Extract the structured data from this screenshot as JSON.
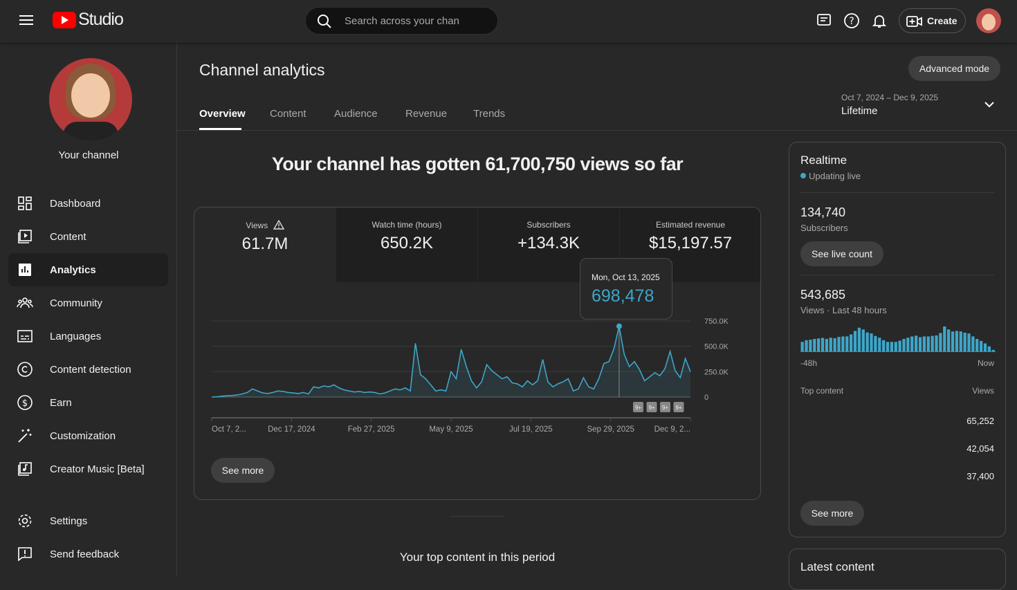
{
  "header": {
    "logo": "Studio",
    "search_placeholder": "Search across your chan",
    "create": "Create"
  },
  "sidebar": {
    "channel_label": "Your channel",
    "items": [
      {
        "label": "Dashboard",
        "icon": "dashboard-icon"
      },
      {
        "label": "Content",
        "icon": "content-icon"
      },
      {
        "label": "Analytics",
        "icon": "analytics-icon",
        "active": true
      },
      {
        "label": "Community",
        "icon": "community-icon"
      },
      {
        "label": "Languages",
        "icon": "languages-icon"
      },
      {
        "label": "Content detection",
        "icon": "copyright-icon"
      },
      {
        "label": "Earn",
        "icon": "dollar-icon"
      },
      {
        "label": "Customization",
        "icon": "magic-wand-icon"
      },
      {
        "label": "Creator Music [Beta]",
        "icon": "music-icon"
      }
    ],
    "bottom": [
      {
        "label": "Settings"
      },
      {
        "label": "Send feedback"
      }
    ]
  },
  "page": {
    "title": "Channel analytics",
    "advanced": "Advanced mode",
    "tabs": [
      "Overview",
      "Content",
      "Audience",
      "Revenue",
      "Trends"
    ],
    "date_range": "Oct 7, 2024 – Dec 9, 2025",
    "period": "Lifetime",
    "headline": "Your channel has gotten 61,700,750 views so far",
    "see_more": "See more",
    "top_content_title": "Your top content in this period"
  },
  "metrics": [
    {
      "label": "Views",
      "value": "61.7M",
      "warning": true
    },
    {
      "label": "Watch time (hours)",
      "value": "650.2K"
    },
    {
      "label": "Subscribers",
      "value": "+134.3K"
    },
    {
      "label": "Estimated revenue",
      "value": "$15,197.57"
    }
  ],
  "tooltip": {
    "date": "Mon, Oct 13, 2025",
    "value": "698,478"
  },
  "chart_data": {
    "type": "area",
    "title": "",
    "xlabel": "",
    "ylabel": "",
    "x_start": "Oct 7, 2024",
    "x_end": "Dec 9, 2025",
    "x_tick_labels": [
      "Oct 7, 2...",
      "Dec 17, 2024",
      "Feb 27, 2025",
      "May 9, 2025",
      "Jul 19, 2025",
      "Sep 29, 2025",
      "Dec 9, 2..."
    ],
    "y_tick_labels": [
      "0",
      "250.0K",
      "500.0K",
      "750.0K"
    ],
    "ylim": [
      0,
      750000
    ],
    "grid": true,
    "color": "#3ea6c9",
    "badges": [
      "9+",
      "9+",
      "9+",
      "9+"
    ],
    "values_k": [
      0,
      2,
      8,
      12,
      15,
      20,
      30,
      45,
      80,
      60,
      40,
      35,
      45,
      60,
      55,
      45,
      40,
      35,
      45,
      30,
      100,
      90,
      110,
      100,
      120,
      90,
      70,
      60,
      50,
      55,
      45,
      50,
      45,
      30,
      40,
      60,
      80,
      70,
      90,
      60,
      530,
      220,
      180,
      120,
      60,
      70,
      60,
      250,
      180,
      470,
      300,
      160,
      90,
      150,
      320,
      260,
      220,
      180,
      200,
      140,
      130,
      100,
      160,
      120,
      160,
      370,
      150,
      100,
      130,
      150,
      180,
      60,
      80,
      190,
      100,
      80,
      180,
      330,
      350,
      480,
      698,
      420,
      300,
      350,
      270,
      160,
      200,
      240,
      210,
      280,
      450,
      260,
      190,
      380,
      250
    ]
  },
  "realtime": {
    "title": "Realtime",
    "live": "Updating live",
    "subs": "134,740",
    "subs_label": "Subscribers",
    "see_live": "See live count",
    "views": "543,685",
    "views_label": "Views · Last 48 hours",
    "start": "-48h",
    "end": "Now",
    "top_content": "Top content",
    "views_col": "Views",
    "top_values": [
      "65,252",
      "42,054",
      "37,400"
    ],
    "see_more": "See more",
    "bars": [
      38,
      45,
      47,
      50,
      52,
      54,
      50,
      55,
      53,
      58,
      60,
      60,
      68,
      82,
      95,
      88,
      76,
      72,
      62,
      55,
      45,
      38,
      38,
      38,
      43,
      50,
      55,
      60,
      63,
      57,
      60,
      60,
      62,
      64,
      74,
      100,
      88,
      80,
      82,
      80,
      75,
      72,
      60,
      50,
      42,
      32,
      20,
      6
    ]
  },
  "latest": {
    "title": "Latest content"
  }
}
